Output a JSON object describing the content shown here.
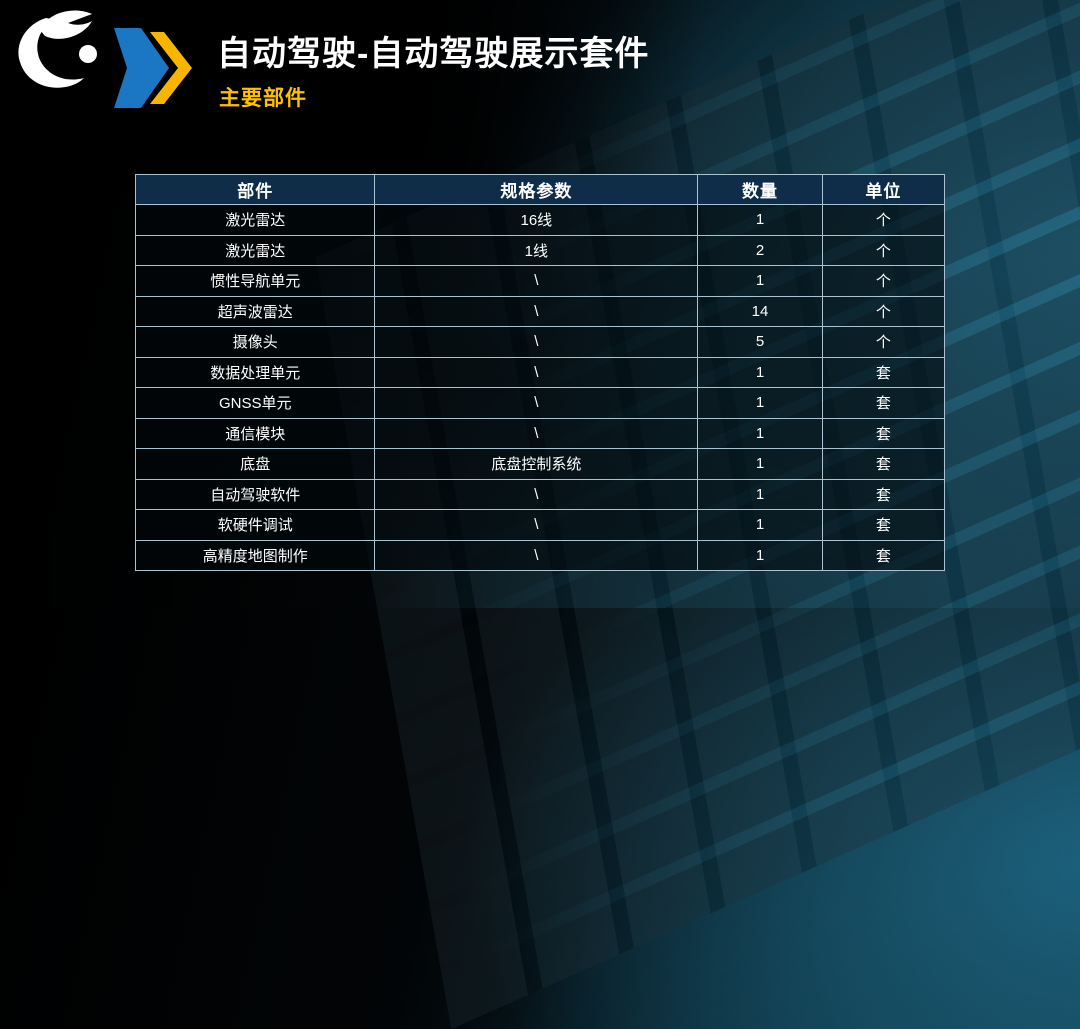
{
  "header": {
    "title": "自动驾驶-自动驾驶展示套件",
    "subtitle": "主要部件"
  },
  "icons": {
    "logo": "swoosh-brand-logo",
    "title_marker": "double-chevron-right"
  },
  "colors": {
    "subtitle_yellow": "#FFC000",
    "chevron_blue": "#1B76C4",
    "chevron_yellow": "#F7B500",
    "table_header_bg": "#0F2D48",
    "table_border": "#A9C4D0",
    "background_teal": "#0E3344",
    "text_white": "#FFFFFF"
  },
  "table": {
    "columns": [
      "部件",
      "规格参数",
      "数量",
      "单位"
    ],
    "rows": [
      [
        "激光雷达",
        "16线",
        "1",
        "个"
      ],
      [
        "激光雷达",
        "1线",
        "2",
        "个"
      ],
      [
        "惯性导航单元",
        "\\",
        "1",
        "个"
      ],
      [
        "超声波雷达",
        "\\",
        "14",
        "个"
      ],
      [
        "摄像头",
        "\\",
        "5",
        "个"
      ],
      [
        "数据处理单元",
        "\\",
        "1",
        "套"
      ],
      [
        "GNSS单元",
        "\\",
        "1",
        "套"
      ],
      [
        "通信模块",
        "\\",
        "1",
        "套"
      ],
      [
        "底盘",
        "底盘控制系统",
        "1",
        "套"
      ],
      [
        "自动驾驶软件",
        "\\",
        "1",
        "套"
      ],
      [
        "软硬件调试",
        "\\",
        "1",
        "套"
      ],
      [
        "高精度地图制作",
        "\\",
        "1",
        "套"
      ]
    ]
  }
}
